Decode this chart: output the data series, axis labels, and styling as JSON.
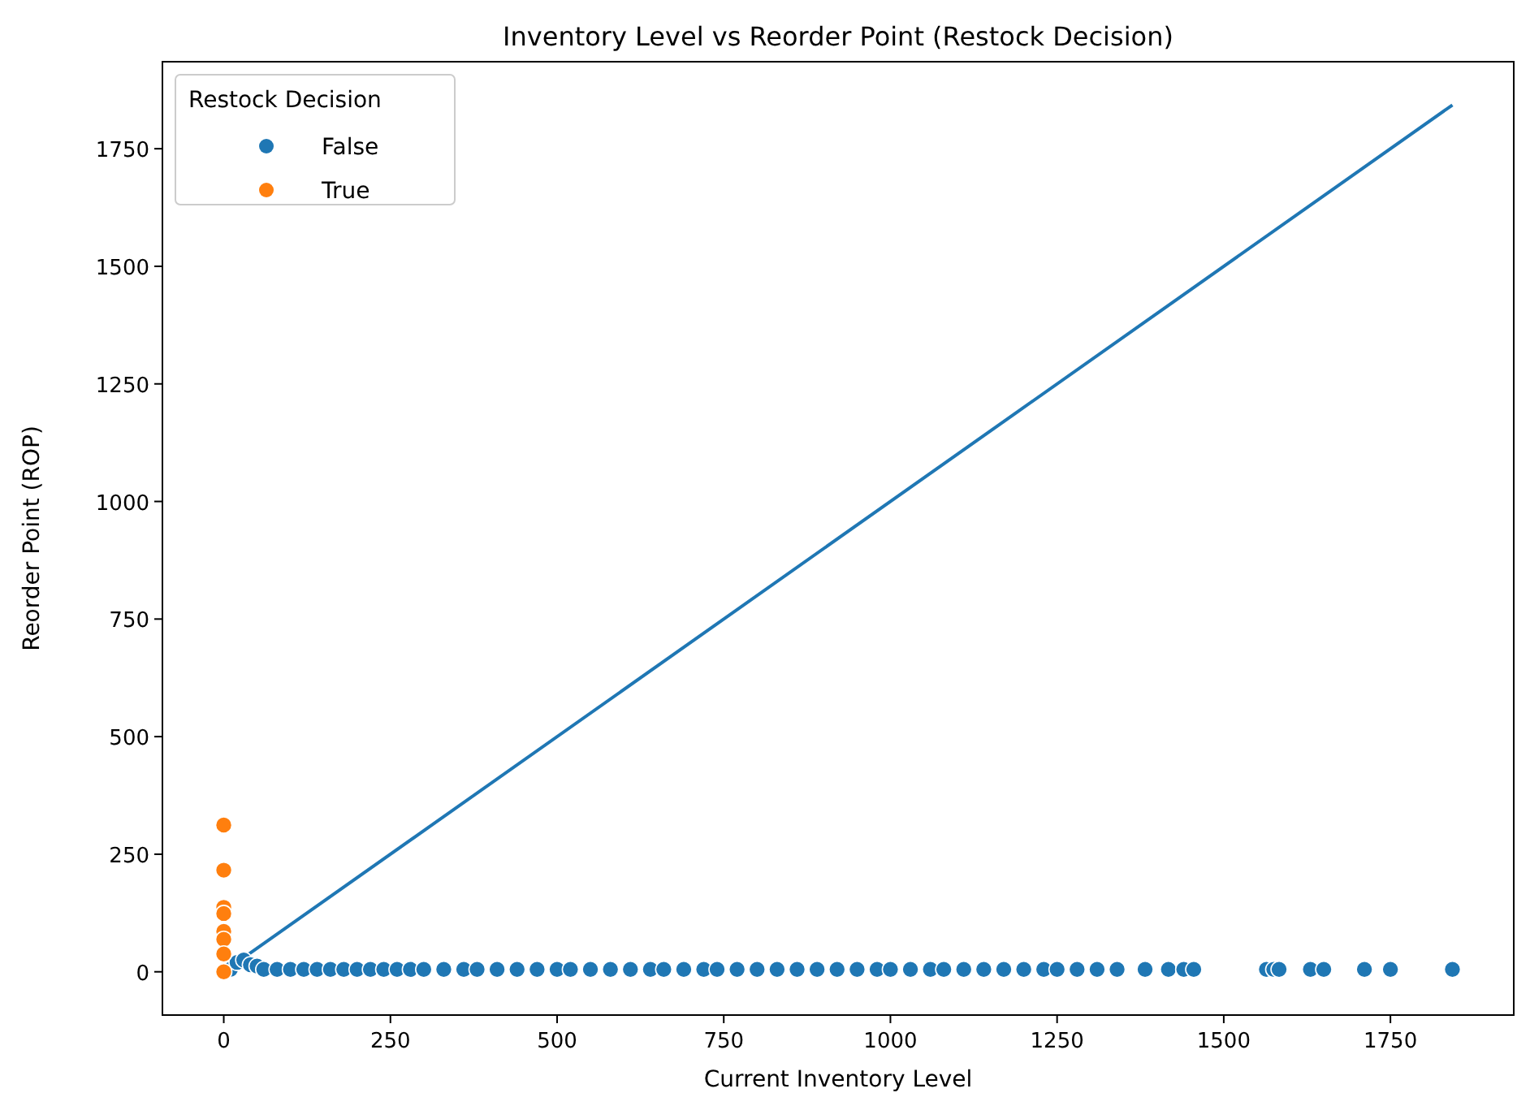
{
  "chart_data": {
    "type": "scatter",
    "title": "Inventory Level vs Reorder Point (Restock Decision)",
    "xlabel": "Current Inventory Level",
    "ylabel": "Reorder Point (ROP)",
    "legend_title": "Restock Decision",
    "legend": "top left",
    "grid": false,
    "xlim": [
      -92,
      1935
    ],
    "ylim": [
      -92,
      1935
    ],
    "xticks": [
      0,
      250,
      500,
      750,
      1000,
      1250,
      1500,
      1750
    ],
    "yticks": [
      0,
      250,
      500,
      750,
      1000,
      1250,
      1500,
      1750
    ],
    "series": [
      {
        "type": "line",
        "color": "#1f77b4",
        "line_style": "solid",
        "x": [
          0,
          1843
        ],
        "values": [
          0,
          1843
        ]
      },
      {
        "name": "False",
        "color": "#1f77b4",
        "marker": "circle",
        "x": [
          10,
          20,
          30,
          40,
          50,
          60,
          80,
          100,
          120,
          140,
          160,
          180,
          200,
          220,
          240,
          260,
          280,
          300,
          330,
          360,
          380,
          410,
          440,
          470,
          500,
          520,
          550,
          580,
          610,
          640,
          660,
          690,
          720,
          740,
          770,
          800,
          830,
          860,
          890,
          920,
          950,
          980,
          1000,
          1030,
          1060,
          1080,
          1110,
          1140,
          1170,
          1200,
          1230,
          1250,
          1280,
          1310,
          1340,
          1382,
          1417,
          1440,
          1455,
          1564,
          1575,
          1583,
          1630,
          1650,
          1711,
          1750,
          1843
        ],
        "values": [
          5,
          20,
          25,
          15,
          12,
          5,
          5,
          5,
          5,
          5,
          5,
          5,
          5,
          5,
          5,
          5,
          5,
          5,
          5,
          5,
          5,
          5,
          5,
          5,
          5,
          5,
          5,
          5,
          5,
          5,
          5,
          5,
          5,
          5,
          5,
          5,
          5,
          5,
          5,
          5,
          5,
          5,
          5,
          5,
          5,
          5,
          5,
          5,
          5,
          5,
          5,
          5,
          5,
          5,
          5,
          5,
          5,
          5,
          5,
          5,
          5,
          5,
          5,
          5,
          5,
          5,
          5
        ]
      },
      {
        "name": "True",
        "color": "#ff7f0e",
        "marker": "circle",
        "x": [
          0,
          0,
          0,
          0,
          0,
          0,
          0,
          0
        ],
        "values": [
          312,
          216,
          137,
          124,
          86,
          69,
          38,
          0
        ]
      }
    ]
  }
}
